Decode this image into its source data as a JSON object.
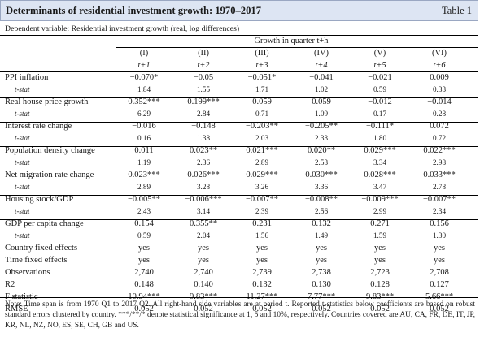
{
  "header": {
    "title": "Determinants of residential investment growth: 1970–2017",
    "table_label": "Table 1"
  },
  "dependent_variable": "Dependent variable: Residential investment growth (real, log differences)",
  "growth_header": "Growth in quarter t+h",
  "columns": [
    {
      "numeral": "(I)",
      "horizon": "t+1"
    },
    {
      "numeral": "(II)",
      "horizon": "t+2"
    },
    {
      "numeral": "(III)",
      "horizon": "t+3"
    },
    {
      "numeral": "(IV)",
      "horizon": "t+4"
    },
    {
      "numeral": "(V)",
      "horizon": "t+5"
    },
    {
      "numeral": "(VI)",
      "horizon": "t+6"
    }
  ],
  "variables": [
    {
      "label": "PPI inflation",
      "tstat_label": "t-stat",
      "coefs": [
        "−0.070*",
        "−0.05",
        "−0.051*",
        "−0.041",
        "−0.021",
        "0.009"
      ],
      "tstats": [
        "1.84",
        "1.55",
        "1.71",
        "1.02",
        "0.59",
        "0.33"
      ]
    },
    {
      "label": "Real house price growth",
      "tstat_label": "t-stat",
      "coefs": [
        "0.352***",
        "0.199***",
        "0.059",
        "0.059",
        "−0.012",
        "−0.014"
      ],
      "tstats": [
        "6.29",
        "2.84",
        "0.71",
        "1.09",
        "0.17",
        "0.28"
      ]
    },
    {
      "label": "Interest rate change",
      "tstat_label": "t-stat",
      "coefs": [
        "−0.016",
        "−0.148",
        "−0.203**",
        "−0.205**",
        "−0.111*",
        "0.072"
      ],
      "tstats": [
        "0.16",
        "1.38",
        "2.03",
        "2.33",
        "1.80",
        "0.72"
      ]
    },
    {
      "label": "Population density change",
      "tstat_label": "t-stat",
      "coefs": [
        "0.011",
        "0.023**",
        "0.021***",
        "0.020**",
        "0.029***",
        "0.022***"
      ],
      "tstats": [
        "1.19",
        "2.36",
        "2.89",
        "2.53",
        "3.34",
        "2.98"
      ]
    },
    {
      "label": "Net migration rate change",
      "tstat_label": "t-stat",
      "coefs": [
        "0.023***",
        "0.026***",
        "0.029***",
        "0.030***",
        "0.028***",
        "0.033***"
      ],
      "tstats": [
        "2.89",
        "3.28",
        "3.26",
        "3.36",
        "3.47",
        "2.78"
      ]
    },
    {
      "label": "Housing stock/GDP",
      "tstat_label": "t-stat",
      "coefs": [
        "−0.005**",
        "−0.006***",
        "−0.007**",
        "−0.008**",
        "−0.009***",
        "−0.007**"
      ],
      "tstats": [
        "2.43",
        "3.14",
        "2.39",
        "2.56",
        "2.99",
        "2.34"
      ]
    },
    {
      "label": "GDP per capita change",
      "tstat_label": "t-stat",
      "coefs": [
        "0.154",
        "0.355**",
        "0.231",
        "0.132",
        "0.271",
        "0.156"
      ],
      "tstats": [
        "0.59",
        "2.04",
        "1.56",
        "1.49",
        "1.59",
        "1.30"
      ]
    }
  ],
  "fixed_effects": [
    {
      "label": "Country fixed effects",
      "values": [
        "yes",
        "yes",
        "yes",
        "yes",
        "yes",
        "yes"
      ]
    },
    {
      "label": "Time fixed effects",
      "values": [
        "yes",
        "yes",
        "yes",
        "yes",
        "yes",
        "yes"
      ]
    }
  ],
  "stats": [
    {
      "label": "Observations",
      "values": [
        "2,740",
        "2,740",
        "2,739",
        "2,738",
        "2,723",
        "2,708"
      ]
    },
    {
      "label": "R2",
      "values": [
        "0.148",
        "0.140",
        "0.132",
        "0.130",
        "0.128",
        "0.127"
      ]
    },
    {
      "label": "F statistic",
      "values": [
        "10.94***",
        "9.83***",
        "11.27***",
        "7.77***",
        "9.83***",
        "5.66***"
      ]
    },
    {
      "label": "RMSE",
      "values": [
        "0.052",
        "0.052",
        "0.052",
        "0.052",
        "0.052",
        "0.052"
      ]
    }
  ],
  "note": "Note: Time span is from 1970 Q1 to 2017 Q2. All right-hand side variables are at period t. Reported t-statistics below coefficients are based on robust standard errors clustered by country. ***/**/* denote statistical significance at 1, 5 and 10%, respectively. Countries covered are AU, CA, FR, DE, IT, JP, KR, NL, NZ, NO, ES, SE, CH, GB and US."
}
